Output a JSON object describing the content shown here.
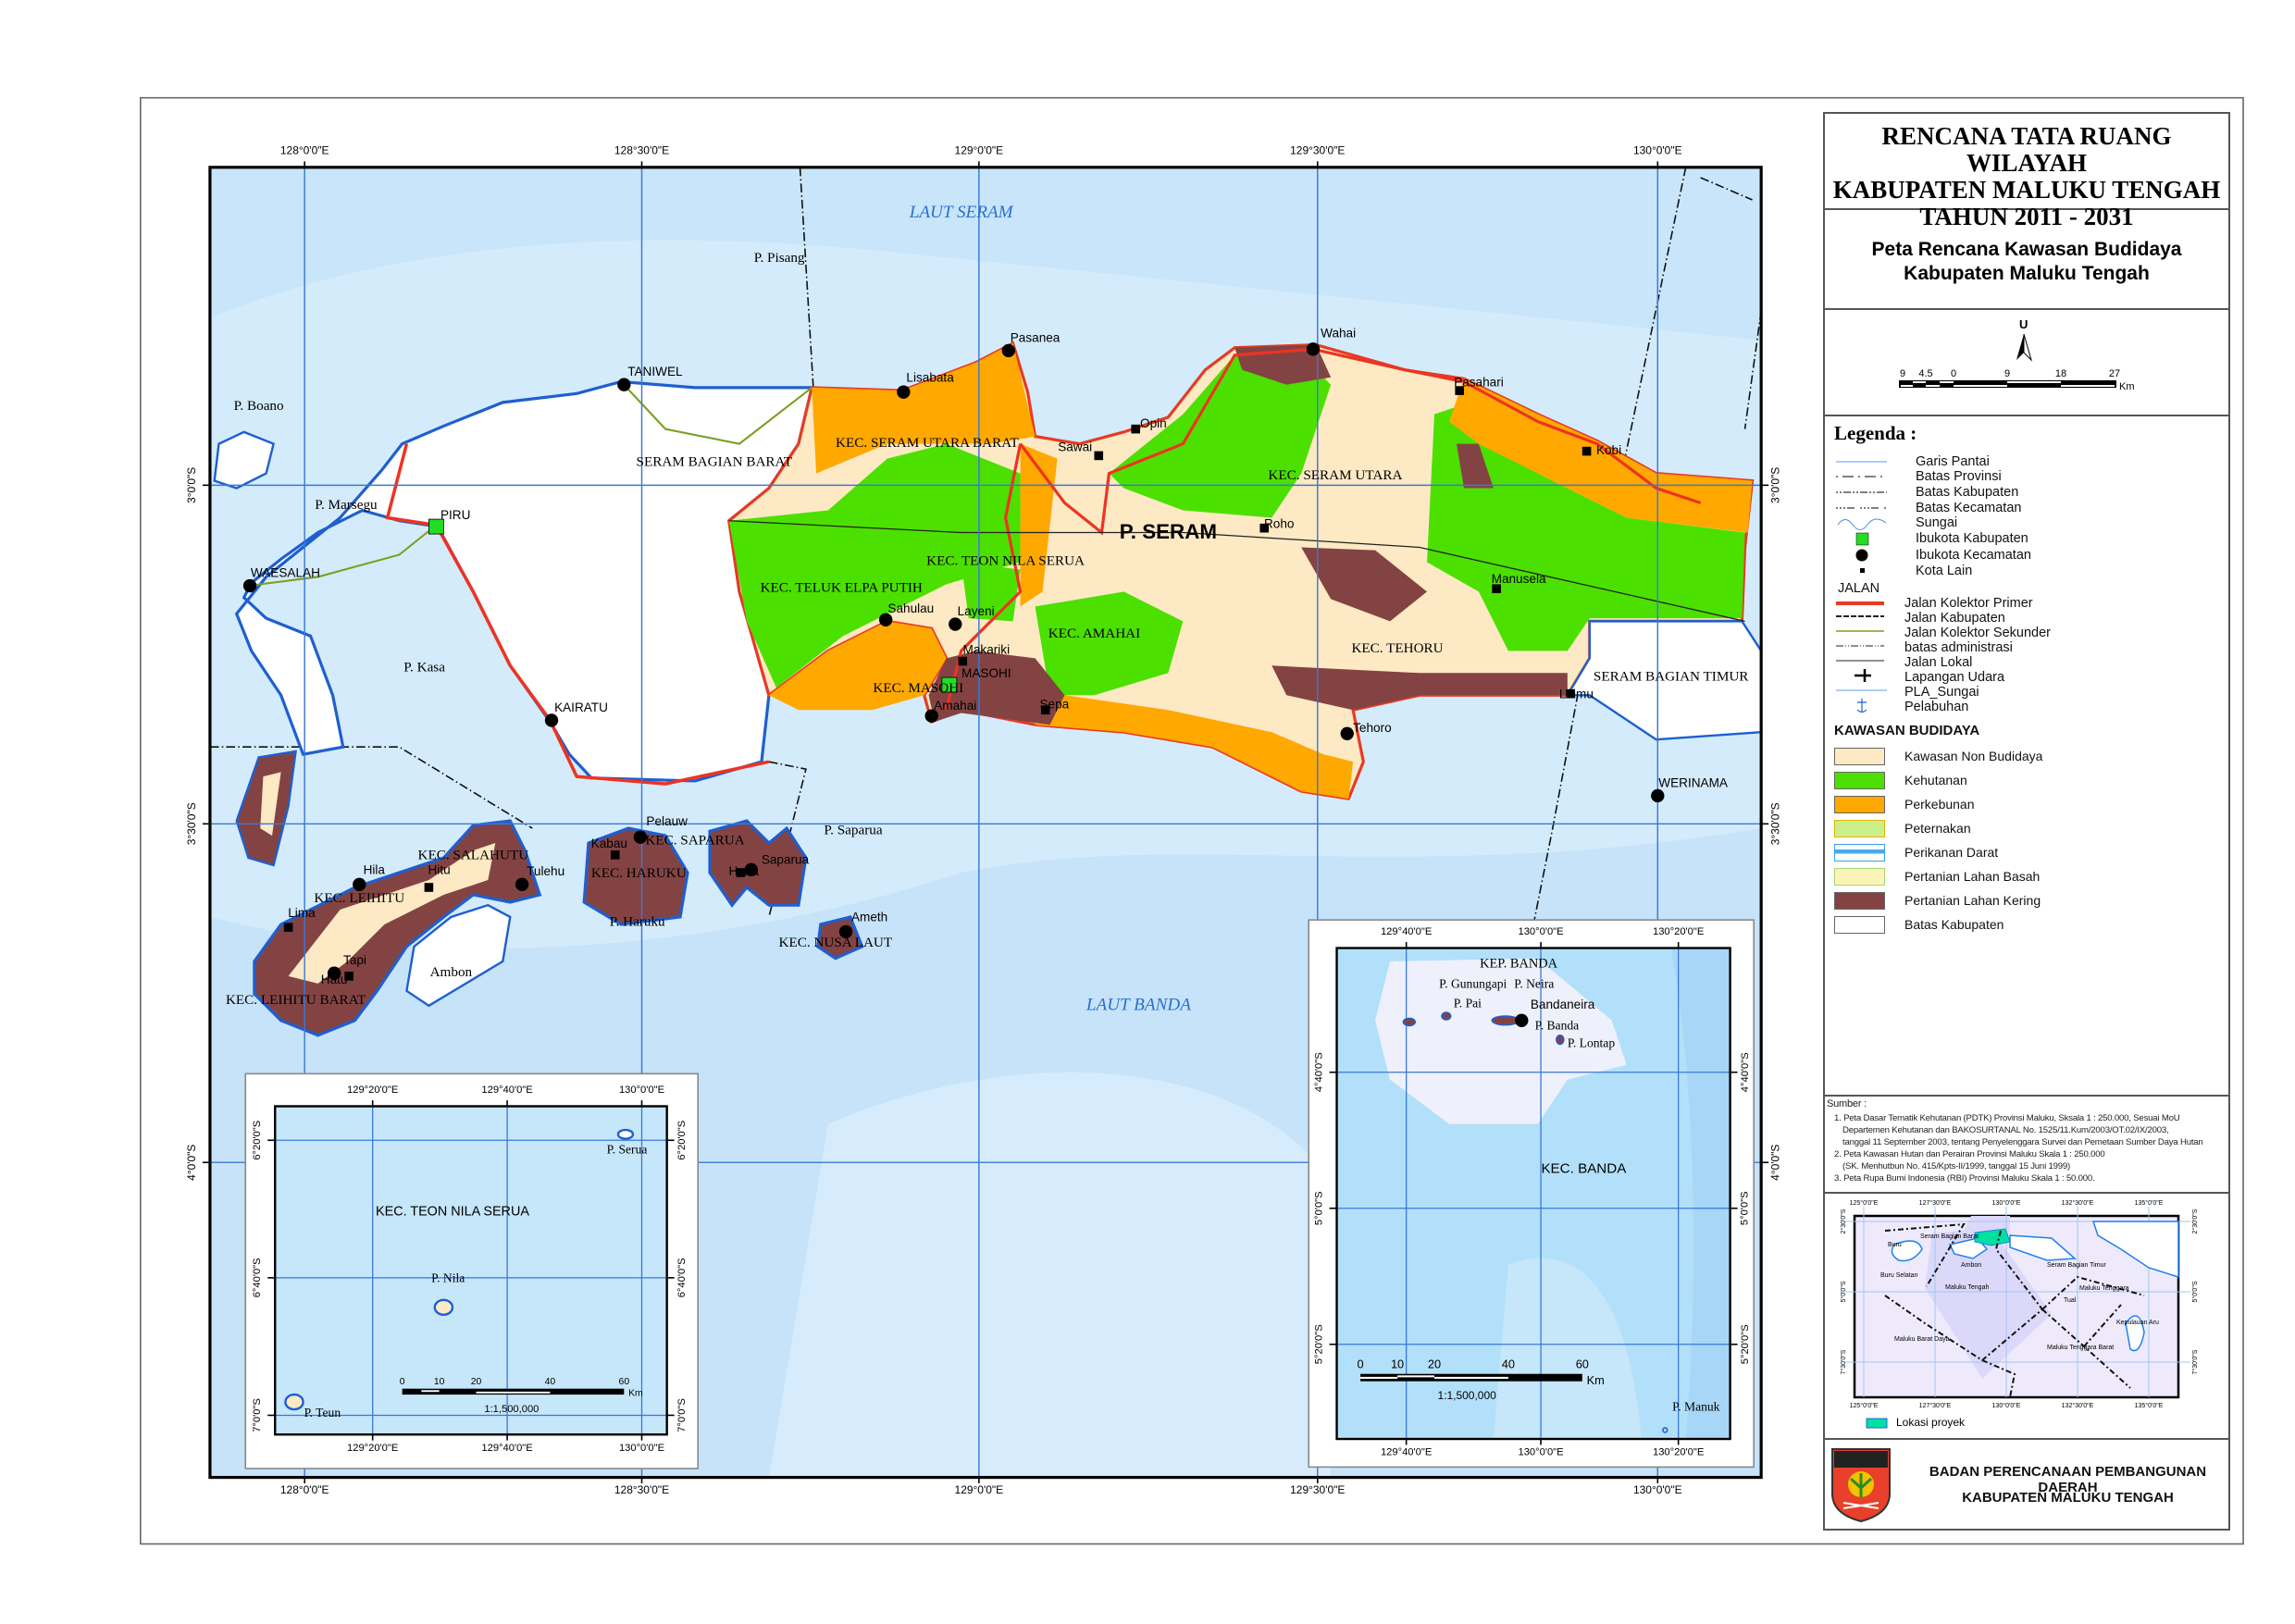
{
  "title": {
    "line1": "RENCANA TATA RUANG WILAYAH",
    "line2": "KABUPATEN MALUKU TENGAH",
    "line3": "TAHUN 2011 - 2031"
  },
  "subtitle": {
    "line1": "Peta Rencana Kawasan Budidaya",
    "line2": "Kabupaten Maluku Tengah"
  },
  "north": {
    "label": "U"
  },
  "scalebar": {
    "ticks": [
      "9",
      "4.5",
      "0",
      "9",
      "18",
      "27"
    ],
    "unit": "Km"
  },
  "legend": {
    "heading": "Legenda :",
    "items": [
      "Garis Pantai",
      "Batas Provinsi",
      "Batas Kabupaten",
      "Batas Kecamatan",
      "Sungai",
      "Ibukota Kabupaten",
      "Ibukota Kecamatan",
      "Kota Lain"
    ],
    "jalan_heading": "JALAN",
    "jalan": [
      "Jalan Kolektor Primer",
      "Jalan Kabupaten",
      "Jalan Kolektor Sekunder",
      "batas administrasi",
      "Jalan Lokal",
      "Lapangan Udara",
      "PLA_Sungai",
      "Pelabuhan"
    ],
    "kawasan_heading": "KAWASAN BUDIDAYA",
    "kawasan": [
      {
        "label": "Kawasan Non Budidaya",
        "color": "#fde9c4"
      },
      {
        "label": "Kehutanan",
        "color": "#4ce000"
      },
      {
        "label": "Perkebunan",
        "color": "#ffa800"
      },
      {
        "label": "Peternakan",
        "color": "#c9f08a"
      },
      {
        "label": "Perikanan Darat",
        "color": "#ffffff"
      },
      {
        "label": "Pertanian Lahan Basah",
        "color": "#fbf4b8"
      },
      {
        "label": "Pertanian Lahan Kering",
        "color": "#844343"
      },
      {
        "label": "Batas Kabupaten",
        "color": "#ffffff"
      }
    ]
  },
  "sources": {
    "heading": "Sumber :",
    "lines": [
      "1. Peta Dasar Tematik Kehutanan (PDTK) Provinsi Maluku, Sksala 1 : 250.000, Sesuai MoU",
      "Departemen Kehutanan dan BAKOSURTANAL  No. 1525/11.Kum/2003/OT.02/IX/2003,",
      "tanggal 11 September 2003, tentang Penyelenggara Survei dan Pemetaan Sumber Daya Hutan",
      "2. Peta Kawasan Hutan dan Perairan Provinsi Maluku Skala 1 : 250.000",
      "(SK. Menhutbun No. 415/Kpts-II/1999, tanggal 15 Juni 1999)",
      "3. Peta Rupa Bumi Indonesia (RBI) Provinsi Maluku Skala 1 : 50.000."
    ]
  },
  "locator": {
    "lon_ticks": [
      "125°0'0\"E",
      "127°30'0\"E",
      "130°0'0\"E",
      "132°30'0\"E",
      "135°0'0\"E"
    ],
    "lat_ticks": [
      "2°30'0\"S",
      "5°0'0\"S",
      "7°30'0\"S"
    ],
    "labels": [
      "Buru",
      "Seram Bagian Barat",
      "Ambon",
      "Buru Selatan",
      "Seram Bagian Timur",
      "Maluku Tengah",
      "Maluku Tenggara",
      "Tual",
      "Kepulauan Aru",
      "Maluku Barat Daya",
      "Maluku Tenggara Barat"
    ],
    "project_label": "Lokasi proyek",
    "project_color": "#00e0a0"
  },
  "agency": {
    "line1": "BADAN PERENCANAAN PEMBANGUNAN DAERAH",
    "line2": "KABUPATEN MALUKU TENGAH",
    "logo_text": "KABUPATEN MALUKU TENGAH"
  },
  "map": {
    "lon_ticks": [
      "128°0'0\"E",
      "128°30'0\"E",
      "129°0'0\"E",
      "129°30'0\"E",
      "130°0'0\"E"
    ],
    "lat_ticks": [
      "3°0'0\"S",
      "3°30'0\"S",
      "4°0'0\"S"
    ],
    "labels": [
      "LAUT SERAM",
      "LAUT BANDA",
      "P. SERAM",
      "P. Pisang",
      "Pasanea",
      "Lisabata",
      "TANIWEL",
      "P. Boano",
      "SERAM BAGIAN BARAT",
      "KEC. SERAM UTARA BARAT",
      "Sawai",
      "Opin",
      "Wahai",
      "Pasahari",
      "Kobi",
      "KEC. SERAM UTARA",
      "Roho",
      "PIRU",
      "P. Marsegu",
      "WAESALAH",
      "P. Kasa",
      "KAIRATU",
      "KEC. TEON NILA SERUA",
      "KEC. TELUK ELPA PUTIH",
      "Sahulau",
      "Layeni",
      "Makariki",
      "KEC. AMAHAI",
      "MASOHI",
      "KEC. MASOHI",
      "Amahai",
      "Sepa",
      "Manusela",
      "KEC. TEHORU",
      "SERAM BAGIAN TIMUR",
      "Laimu",
      "Tehoro",
      "WERINAMA",
      "KEC. SALAHUTU",
      "Hila",
      "Hitu",
      "Tulehu",
      "KEC. LEIHITU",
      "Lima",
      "Tapi",
      "Hatu",
      "KEC. LEIHITU BARAT",
      "Ambon",
      "Kabau",
      "Pelauw",
      "KEC. HARUKU",
      "P. Haruku",
      "KEC. SAPARUA",
      "Haria",
      "Saparua",
      "P. Saparua",
      "Ameth",
      "KEC. NUSA LAUT"
    ],
    "colors": {
      "sea": "#d4ebfb",
      "sea_deep": "#c2e0f8",
      "grid": "#3a78d6",
      "coast": "#1e5fd0",
      "road_primary": "#ee3322",
      "road_secondary": "#7aa022"
    }
  },
  "inset_teon": {
    "lon_ticks": [
      "129°20'0\"E",
      "129°40'0\"E",
      "130°0'0\"E"
    ],
    "lat_ticks": [
      "6°20'0\"S",
      "6°40'0\"S",
      "7°0'0\"S"
    ],
    "labels": [
      "KEC. TEON NILA SERUA",
      "P. Serua",
      "P. Nila",
      "P. Teun"
    ],
    "scale_ticks": [
      "0",
      "10",
      "20",
      "40",
      "60"
    ],
    "scale_unit": "Km",
    "scale_ratio": "1:1,500,000"
  },
  "inset_banda": {
    "lon_ticks": [
      "129°40'0\"E",
      "130°0'0\"E",
      "130°20'0\"E"
    ],
    "lat_ticks": [
      "4°40'0\"S",
      "5°0'0\"S",
      "5°20'0\"S"
    ],
    "labels": [
      "KEP. BANDA",
      "P. Gunungapi",
      "P. Neira",
      "P. Pai",
      "Bandaneira",
      "P. Banda",
      "P. Lontap",
      "KEC. BANDA",
      "P. Manuk"
    ],
    "scale_ticks": [
      "0",
      "10",
      "20",
      "40",
      "60"
    ],
    "scale_unit": "Km",
    "scale_ratio": "1:1,500,000"
  }
}
